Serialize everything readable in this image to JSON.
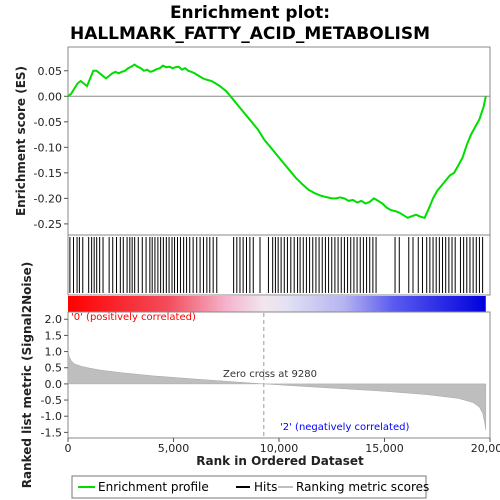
{
  "chart_data": {
    "type": "line",
    "title_line1": "Enrichment plot:",
    "title_line2": "HALLMARK_FATTY_ACID_METABOLISM",
    "colors": {
      "profile": "#00dd00",
      "hits": "#000000",
      "metric_fill": "#bebebe",
      "pos_label": "#ff0000",
      "neg_label": "#0000ff",
      "zero_line": "#9a9a9a",
      "bar_red": "#ff0000",
      "bar_blue": "#0000ff"
    },
    "es_panel": {
      "ylabel": "Enrichment score (ES)",
      "ylim": [
        -0.26,
        0.075
      ],
      "yticks": [
        0.05,
        0.0,
        -0.05,
        -0.1,
        -0.15,
        -0.2,
        -0.25
      ],
      "ytick_labels": [
        "0.05",
        "0.00",
        "-0.05",
        "-0.10",
        "-0.15",
        "-0.20",
        "-0.25"
      ],
      "xlim": [
        0,
        20000
      ],
      "series": [
        {
          "name": "Enrichment profile",
          "x": [
            0,
            150,
            300,
            450,
            600,
            750,
            900,
            1050,
            1200,
            1350,
            1500,
            1650,
            1800,
            1950,
            2100,
            2250,
            2400,
            2550,
            2700,
            2850,
            3000,
            3150,
            3300,
            3450,
            3600,
            3750,
            3900,
            4050,
            4200,
            4350,
            4500,
            4650,
            4800,
            4950,
            5100,
            5250,
            5400,
            5550,
            5700,
            5850,
            6000,
            6200,
            6400,
            6600,
            6800,
            7000,
            7200,
            7500,
            7800,
            8100,
            8400,
            8700,
            9000,
            9300,
            9600,
            9900,
            10200,
            10500,
            10800,
            11100,
            11400,
            11700,
            12000,
            12300,
            12500,
            12700,
            12900,
            13100,
            13300,
            13500,
            13700,
            13900,
            14100,
            14300,
            14500,
            14700,
            14900,
            15100,
            15300,
            15500,
            15700,
            15900,
            16100,
            16300,
            16500,
            16700,
            16900,
            17100,
            17300,
            17500,
            17700,
            17900,
            18100,
            18300,
            18500,
            18700,
            18900,
            19100,
            19300,
            19500,
            19700,
            19800
          ],
          "y": [
            0.0,
            0.005,
            0.015,
            0.025,
            0.03,
            0.025,
            0.02,
            0.035,
            0.05,
            0.05,
            0.045,
            0.04,
            0.035,
            0.04,
            0.045,
            0.048,
            0.045,
            0.048,
            0.05,
            0.055,
            0.058,
            0.062,
            0.058,
            0.055,
            0.05,
            0.052,
            0.048,
            0.05,
            0.053,
            0.055,
            0.06,
            0.057,
            0.058,
            0.055,
            0.057,
            0.058,
            0.052,
            0.055,
            0.05,
            0.048,
            0.045,
            0.04,
            0.035,
            0.032,
            0.03,
            0.025,
            0.02,
            0.01,
            -0.005,
            -0.02,
            -0.035,
            -0.05,
            -0.065,
            -0.085,
            -0.1,
            -0.115,
            -0.13,
            -0.145,
            -0.16,
            -0.172,
            -0.183,
            -0.19,
            -0.195,
            -0.198,
            -0.2,
            -0.2,
            -0.198,
            -0.2,
            -0.205,
            -0.203,
            -0.208,
            -0.205,
            -0.21,
            -0.207,
            -0.2,
            -0.205,
            -0.21,
            -0.218,
            -0.223,
            -0.225,
            -0.228,
            -0.233,
            -0.238,
            -0.235,
            -0.232,
            -0.236,
            -0.238,
            -0.22,
            -0.2,
            -0.185,
            -0.175,
            -0.165,
            -0.155,
            -0.15,
            -0.135,
            -0.12,
            -0.095,
            -0.075,
            -0.06,
            -0.045,
            -0.02,
            0.0
          ]
        }
      ]
    },
    "hits": [
      90,
      260,
      430,
      540,
      700,
      980,
      1120,
      1240,
      1360,
      1500,
      1660,
      1950,
      2120,
      2300,
      2480,
      2620,
      2800,
      2930,
      3040,
      3160,
      3330,
      3520,
      3700,
      3880,
      3990,
      4120,
      4260,
      4390,
      4520,
      4660,
      4790,
      4930,
      5050,
      5190,
      5330,
      5480,
      5620,
      5770,
      5930,
      6100,
      6260,
      6420,
      6580,
      6720,
      6880,
      7050,
      7850,
      8000,
      8150,
      8300,
      8460,
      8620,
      8780,
      9100,
      9500,
      9700,
      9830,
      9960,
      10100,
      10250,
      10400,
      10560,
      10720,
      10880,
      11000,
      11150,
      11300,
      11450,
      11600,
      11750,
      11900,
      12050,
      12200,
      12350,
      12500,
      12650,
      12800,
      12950,
      13100,
      13250,
      13400,
      13550,
      13700,
      13850,
      14000,
      14150,
      14300,
      14450,
      14600,
      15500,
      15700,
      16150,
      16350,
      16600,
      16800,
      17000,
      17150,
      17300,
      17450,
      17600,
      17750,
      17900,
      18050,
      18200,
      18350,
      18600,
      18750,
      18900,
      19050,
      19200,
      19350,
      19500,
      19650
    ],
    "color_bar": {
      "pos_label": "'0' (positively correlated)",
      "neg_label": "'2' (negatively correlated)"
    },
    "metric_panel": {
      "ylabel": "Ranked list metric (Signal2Noise)",
      "ylim": [
        -1.55,
        2.1
      ],
      "yticks": [
        2.0,
        1.5,
        1.0,
        0.5,
        0.0,
        -0.5,
        -1.0,
        -1.5
      ],
      "ytick_labels": [
        "2.0",
        "1.5",
        "1.0",
        "0.5",
        "0.0",
        "-0.5",
        "-1.0",
        "-1.5"
      ],
      "zero_cross_label": "Zero cross at 9280",
      "zero_cross": 9280,
      "curve_x": [
        0,
        50,
        150,
        300,
        600,
        1000,
        1500,
        2500,
        4000,
        6000,
        8000,
        9280,
        11000,
        13000,
        15000,
        17000,
        18500,
        19200,
        19500,
        19650,
        19750,
        19800
      ],
      "curve_y": [
        1.05,
        0.85,
        0.72,
        0.62,
        0.55,
        0.49,
        0.43,
        0.35,
        0.25,
        0.15,
        0.06,
        0.0,
        -0.07,
        -0.15,
        -0.23,
        -0.33,
        -0.45,
        -0.58,
        -0.72,
        -0.9,
        -1.2,
        -1.42
      ]
    },
    "xaxis": {
      "label": "Rank in Ordered Dataset",
      "xlim": [
        0,
        20000
      ],
      "ticks": [
        0,
        5000,
        10000,
        15000,
        20000
      ],
      "tick_labels": [
        "0",
        "5,000",
        "10,000",
        "15,000",
        "20,000"
      ],
      "n_genes": 19800
    },
    "legend": {
      "items": [
        "Enrichment profile",
        "Hits",
        "Ranking metric scores"
      ]
    }
  }
}
